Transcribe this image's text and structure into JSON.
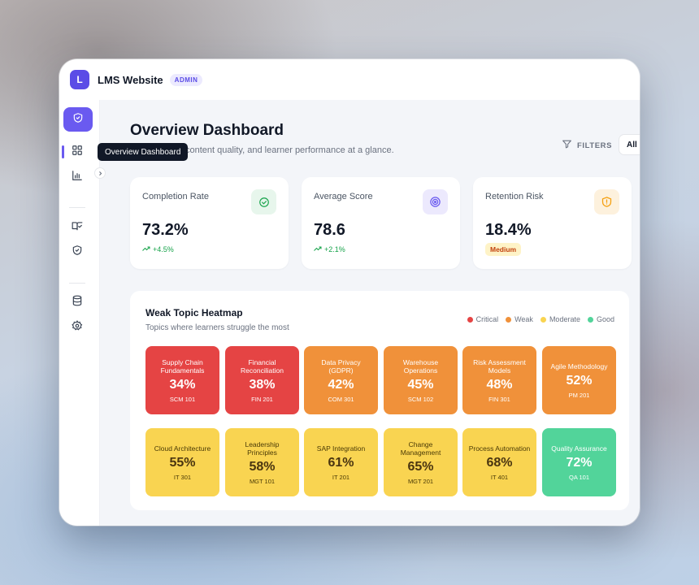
{
  "app": {
    "logo_letter": "L",
    "title": "LMS Website",
    "role_badge": "ADMIN"
  },
  "sidebar": {
    "items": [
      {
        "icon": "shield-check-icon",
        "active": true
      },
      {
        "icon": "dashboard-grid-icon",
        "tooltip": "Overview Dashboard"
      },
      {
        "icon": "bar-chart-icon"
      },
      {
        "icon": "book-check-icon"
      },
      {
        "icon": "shield-icon"
      },
      {
        "icon": "database-icon"
      },
      {
        "icon": "gear-icon"
      }
    ],
    "tooltip": "Overview Dashboard"
  },
  "header": {
    "title": "Overview Dashboard",
    "subtitle_visible": "content quality, and learner performance at a glance.",
    "filters_label": "FILTERS",
    "select_value": "All"
  },
  "kpis": [
    {
      "label": "Completion Rate",
      "value": "73.2%",
      "delta": "+4.5%",
      "icon": "check-circle-icon",
      "color": "#16a34a"
    },
    {
      "label": "Average Score",
      "value": "78.6",
      "delta": "+2.1%",
      "icon": "target-icon",
      "color": "#6a5af0"
    },
    {
      "label": "Retention Risk",
      "value": "18.4%",
      "badge": "Medium",
      "icon": "alert-shield-icon",
      "color": "#f59e0b"
    }
  ],
  "heatmap": {
    "title": "Weak Topic Heatmap",
    "subtitle": "Topics where learners struggle the most",
    "legend": [
      {
        "label": "Critical",
        "color": "#e54444"
      },
      {
        "label": "Weak",
        "color": "#f0913a"
      },
      {
        "label": "Moderate",
        "color": "#f9d451"
      },
      {
        "label": "Good",
        "color": "#52d49a"
      }
    ],
    "tiles": [
      {
        "name": "Supply Chain Fundamentals",
        "pct": "34%",
        "code": "SCM 101",
        "level": "red"
      },
      {
        "name": "Financial Reconciliation",
        "pct": "38%",
        "code": "FIN 201",
        "level": "red"
      },
      {
        "name": "Data Privacy (GDPR)",
        "pct": "42%",
        "code": "COM 301",
        "level": "orange"
      },
      {
        "name": "Warehouse Operations",
        "pct": "45%",
        "code": "SCM 102",
        "level": "orange"
      },
      {
        "name": "Risk Assessment Models",
        "pct": "48%",
        "code": "FIN 301",
        "level": "orange"
      },
      {
        "name": "Agile Methodology",
        "pct": "52%",
        "code": "PM 201",
        "level": "orange"
      },
      {
        "name": "Cloud Architecture",
        "pct": "55%",
        "code": "IT 301",
        "level": "yellow"
      },
      {
        "name": "Leadership Principles",
        "pct": "58%",
        "code": "MGT 101",
        "level": "yellow"
      },
      {
        "name": "SAP Integration",
        "pct": "61%",
        "code": "IT 201",
        "level": "yellow"
      },
      {
        "name": "Change Management",
        "pct": "65%",
        "code": "MGT 201",
        "level": "yellow"
      },
      {
        "name": "Process Automation",
        "pct": "68%",
        "code": "IT 401",
        "level": "yellow"
      },
      {
        "name": "Quality Assurance",
        "pct": "72%",
        "code": "QA 101",
        "level": "green"
      }
    ]
  }
}
